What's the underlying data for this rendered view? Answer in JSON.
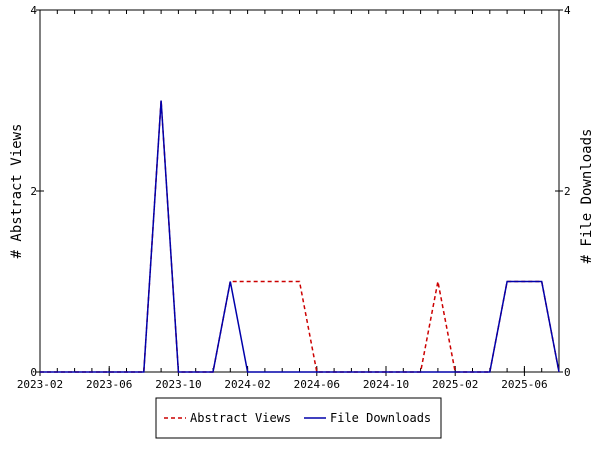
{
  "chart_data": {
    "type": "line",
    "x": [
      "2023-02",
      "2023-03",
      "2023-04",
      "2023-05",
      "2023-06",
      "2023-07",
      "2023-08",
      "2023-09",
      "2023-10",
      "2023-11",
      "2023-12",
      "2024-01",
      "2024-02",
      "2024-03",
      "2024-04",
      "2024-05",
      "2024-06",
      "2024-07",
      "2024-08",
      "2024-09",
      "2024-10",
      "2024-11",
      "2024-12",
      "2025-01",
      "2025-02",
      "2025-03",
      "2025-04",
      "2025-05",
      "2025-06",
      "2025-07",
      "2025-08"
    ],
    "series": [
      {
        "name": "Abstract Views",
        "color": "#cc0000",
        "dash": "dashed",
        "values": [
          0,
          0,
          0,
          0,
          0,
          0,
          0,
          3,
          0,
          0,
          0,
          1,
          1,
          1,
          1,
          1,
          0,
          0,
          0,
          0,
          0,
          0,
          0,
          1,
          0,
          0,
          0,
          1,
          1,
          1,
          0
        ]
      },
      {
        "name": "File Downloads",
        "color": "#0000aa",
        "dash": "solid",
        "values": [
          0,
          0,
          0,
          0,
          0,
          0,
          0,
          3,
          0,
          0,
          0,
          1,
          0,
          0,
          0,
          0,
          0,
          0,
          0,
          0,
          0,
          0,
          0,
          0,
          0,
          0,
          0,
          1,
          1,
          1,
          0
        ]
      }
    ],
    "xticks": [
      "2023-02",
      "2023-06",
      "2023-10",
      "2024-02",
      "2024-06",
      "2024-10",
      "2025-02",
      "2025-06"
    ],
    "ylim": [
      0,
      4
    ],
    "yticks": [
      0,
      2,
      4
    ],
    "ylabel": "# Abstract Views",
    "y2label": "# File Downloads",
    "legend_position": "bottom"
  }
}
